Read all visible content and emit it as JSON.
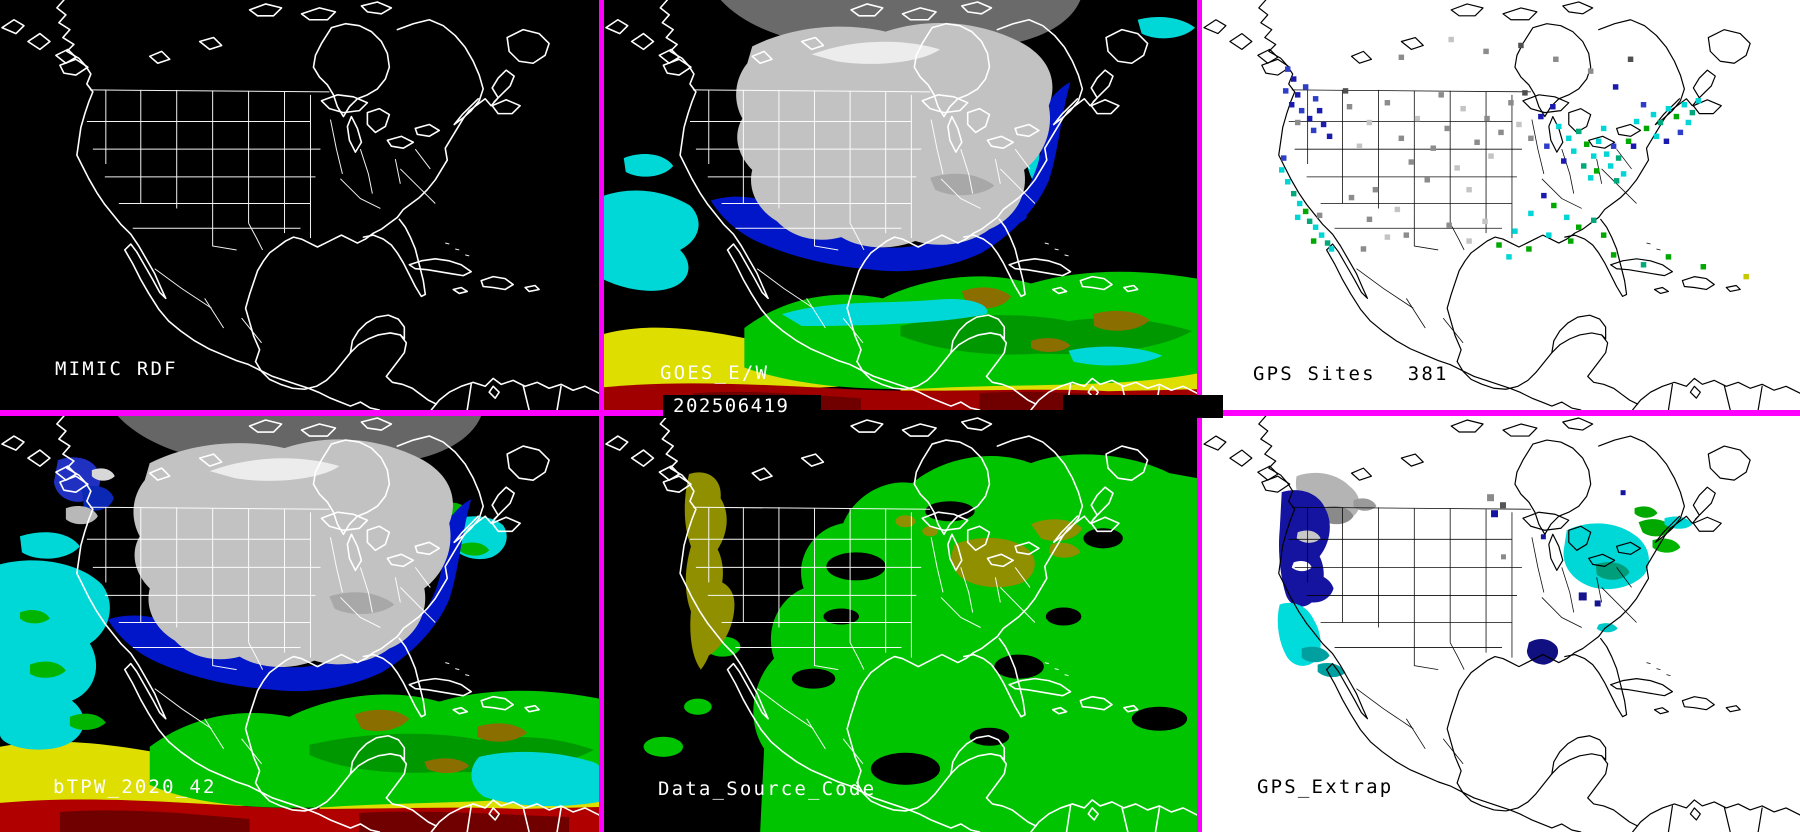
{
  "panels": {
    "mimic": {
      "label": "MIMIC RDF"
    },
    "goes": {
      "label": "GOES_E/W",
      "timestamp": "202506419"
    },
    "gps_sites": {
      "label": "GPS Sites",
      "count": "381"
    },
    "btpw": {
      "label": "bTPW_2020_42"
    },
    "source": {
      "label": "Data_Source_Code"
    },
    "gps_extrap": {
      "label": "GPS_Extrap"
    }
  },
  "colors": {
    "border_magenta": "#ff00ff",
    "panel_dark_bg": "#000000",
    "panel_light_bg": "#ffffff",
    "outline_on_dark": "#ffffff",
    "outline_on_light": "#000000",
    "tpw_gray": "#c2c2c2",
    "tpw_blue": "#0016c8",
    "tpw_cyan": "#00d8d8",
    "tpw_green": "#00c400",
    "tpw_olive": "#8a6f00",
    "tpw_yellow": "#dede00",
    "tpw_red": "#a00000",
    "source_green": "#00c400",
    "source_olive": "#8f8f00"
  },
  "dot_colors": {
    "n": "#1a1aae",
    "b": "#2e3ec8",
    "c": "#00d6d6",
    "t": "#00a87a",
    "g": "#00a800",
    "G": "#8c8c8c",
    "l": "#c4c4c4",
    "d": "#505050",
    "y": "#c8c800"
  },
  "gps_dots": [
    [
      250,
      40,
      "l"
    ],
    [
      285,
      52,
      "G"
    ],
    [
      320,
      46,
      "d"
    ],
    [
      355,
      60,
      "G"
    ],
    [
      390,
      72,
      "G"
    ],
    [
      415,
      88,
      "n"
    ],
    [
      200,
      58,
      "G"
    ],
    [
      430,
      60,
      "d"
    ],
    [
      86,
      70,
      "b"
    ],
    [
      92,
      80,
      "n"
    ],
    [
      84,
      92,
      "b"
    ],
    [
      96,
      96,
      "n"
    ],
    [
      104,
      88,
      "b"
    ],
    [
      90,
      106,
      "n"
    ],
    [
      100,
      112,
      "b"
    ],
    [
      108,
      120,
      "n"
    ],
    [
      114,
      100,
      "b"
    ],
    [
      118,
      112,
      "n"
    ],
    [
      112,
      132,
      "b"
    ],
    [
      122,
      126,
      "n"
    ],
    [
      96,
      124,
      "G"
    ],
    [
      128,
      138,
      "n"
    ],
    [
      82,
      160,
      "b"
    ],
    [
      80,
      172,
      "c"
    ],
    [
      86,
      184,
      "c"
    ],
    [
      92,
      196,
      "t"
    ],
    [
      98,
      206,
      "c"
    ],
    [
      104,
      214,
      "g"
    ],
    [
      96,
      220,
      "c"
    ],
    [
      108,
      224,
      "t"
    ],
    [
      114,
      230,
      "c"
    ],
    [
      120,
      238,
      "c"
    ],
    [
      126,
      246,
      "t"
    ],
    [
      112,
      244,
      "g"
    ],
    [
      130,
      252,
      "c"
    ],
    [
      118,
      218,
      "G"
    ],
    [
      150,
      200,
      "G"
    ],
    [
      168,
      222,
      "G"
    ],
    [
      186,
      240,
      "l"
    ],
    [
      174,
      192,
      "G"
    ],
    [
      196,
      212,
      "l"
    ],
    [
      162,
      252,
      "G"
    ],
    [
      205,
      238,
      "G"
    ],
    [
      148,
      108,
      "G"
    ],
    [
      168,
      124,
      "l"
    ],
    [
      186,
      104,
      "G"
    ],
    [
      200,
      140,
      "G"
    ],
    [
      216,
      120,
      "l"
    ],
    [
      232,
      150,
      "G"
    ],
    [
      246,
      130,
      "G"
    ],
    [
      262,
      110,
      "l"
    ],
    [
      240,
      96,
      "G"
    ],
    [
      276,
      144,
      "G"
    ],
    [
      290,
      158,
      "l"
    ],
    [
      210,
      164,
      "G"
    ],
    [
      256,
      170,
      "l"
    ],
    [
      286,
      120,
      "G"
    ],
    [
      300,
      134,
      "G"
    ],
    [
      158,
      148,
      "l"
    ],
    [
      144,
      92,
      "d"
    ],
    [
      226,
      182,
      "G"
    ],
    [
      268,
      192,
      "l"
    ],
    [
      310,
      104,
      "G"
    ],
    [
      324,
      94,
      "d"
    ],
    [
      340,
      118,
      "n"
    ],
    [
      330,
      140,
      "G"
    ],
    [
      352,
      108,
      "n"
    ],
    [
      346,
      148,
      "b"
    ],
    [
      318,
      126,
      "l"
    ],
    [
      248,
      228,
      "G"
    ],
    [
      268,
      244,
      "l"
    ],
    [
      298,
      248,
      "g"
    ],
    [
      314,
      234,
      "c"
    ],
    [
      328,
      252,
      "g"
    ],
    [
      284,
      224,
      "l"
    ],
    [
      308,
      260,
      "c"
    ],
    [
      358,
      128,
      "c"
    ],
    [
      368,
      140,
      "c"
    ],
    [
      378,
      133,
      "t"
    ],
    [
      373,
      153,
      "c"
    ],
    [
      386,
      146,
      "g"
    ],
    [
      393,
      158,
      "c"
    ],
    [
      383,
      168,
      "t"
    ],
    [
      398,
      143,
      "c"
    ],
    [
      406,
      156,
      "c"
    ],
    [
      396,
      173,
      "g"
    ],
    [
      413,
      148,
      "b"
    ],
    [
      410,
      168,
      "c"
    ],
    [
      418,
      160,
      "t"
    ],
    [
      403,
      130,
      "c"
    ],
    [
      423,
      176,
      "c"
    ],
    [
      428,
      143,
      "g"
    ],
    [
      363,
      163,
      "n"
    ],
    [
      416,
      183,
      "t"
    ],
    [
      390,
      180,
      "c"
    ],
    [
      436,
      123,
      "c"
    ],
    [
      446,
      130,
      "g"
    ],
    [
      453,
      116,
      "c"
    ],
    [
      460,
      124,
      "t"
    ],
    [
      468,
      110,
      "c"
    ],
    [
      476,
      118,
      "g"
    ],
    [
      484,
      106,
      "c"
    ],
    [
      492,
      114,
      "t"
    ],
    [
      456,
      138,
      "c"
    ],
    [
      466,
      143,
      "n"
    ],
    [
      443,
      106,
      "b"
    ],
    [
      498,
      102,
      "c"
    ],
    [
      480,
      134,
      "b"
    ],
    [
      433,
      148,
      "n"
    ],
    [
      488,
      124,
      "c"
    ],
    [
      353,
      208,
      "g"
    ],
    [
      366,
      220,
      "c"
    ],
    [
      378,
      230,
      "g"
    ],
    [
      348,
      238,
      "c"
    ],
    [
      393,
      223,
      "t"
    ],
    [
      343,
      198,
      "n"
    ],
    [
      403,
      238,
      "g"
    ],
    [
      330,
      216,
      "c"
    ],
    [
      370,
      244,
      "g"
    ],
    [
      413,
      258,
      "g"
    ],
    [
      468,
      260,
      "g"
    ],
    [
      503,
      270,
      "g"
    ],
    [
      546,
      280,
      "y"
    ],
    [
      443,
      268,
      "t"
    ]
  ]
}
